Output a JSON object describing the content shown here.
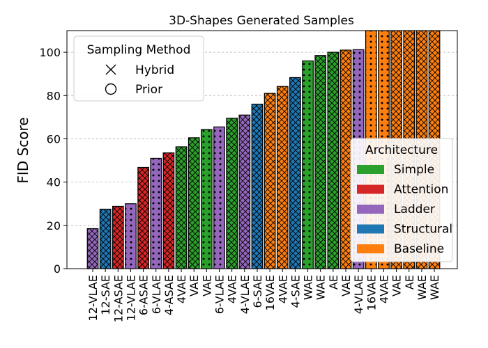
{
  "chart_data": {
    "type": "bar",
    "title": "3D-Shapes Generated Samples",
    "xlabel": "",
    "ylabel": "FID Score",
    "ylim": [
      0,
      110
    ],
    "yticks": [
      0,
      20,
      40,
      60,
      80,
      100
    ],
    "grid": "horizontal dashed",
    "categories": [
      "12-VLAE",
      "12-SAE",
      "12-ASAE",
      "12-VLAE",
      "6-ASAE",
      "6-VLAE",
      "4-ASAE",
      "4VAE",
      "VAE",
      "VAE",
      "6-VLAE",
      "4VAE",
      "4-VLAE",
      "6-SAE",
      "16VAE",
      "4VAE",
      "4-SAE",
      "WAE",
      "WAE",
      "AE",
      "VAE",
      "4-VLAE",
      "16VAE",
      "4VAE",
      "VAE",
      "AE",
      "WAE",
      "WAE"
    ],
    "values": [
      18.5,
      27.5,
      28.8,
      30,
      46.8,
      51,
      53.5,
      56.3,
      60.5,
      64.3,
      65.5,
      69.5,
      71,
      76,
      81,
      84.2,
      88.3,
      96,
      98.5,
      100,
      101,
      101.2,
      110,
      110,
      110,
      110,
      110,
      110
    ],
    "architecture": [
      "Ladder",
      "Structural",
      "Attention",
      "Ladder",
      "Attention",
      "Ladder",
      "Attention",
      "Simple",
      "Simple",
      "Simple",
      "Ladder",
      "Simple",
      "Ladder",
      "Structural",
      "Baseline",
      "Baseline",
      "Structural",
      "Simple",
      "Simple",
      "Simple",
      "Baseline",
      "Ladder",
      "Baseline",
      "Baseline",
      "Baseline",
      "Baseline",
      "Baseline",
      "Baseline"
    ],
    "sampling": [
      "Hybrid",
      "Hybrid",
      "Hybrid",
      "Prior",
      "Hybrid",
      "Prior",
      "Hybrid",
      "Hybrid",
      "Hybrid",
      "Prior",
      "Prior",
      "Hybrid",
      "Hybrid",
      "Hybrid",
      "Hybrid",
      "Hybrid",
      "Hybrid",
      "Prior",
      "Hybrid",
      "Hybrid",
      "Hybrid",
      "Prior",
      "Prior",
      "Prior",
      "Hybrid",
      "Hybrid",
      "Hybrid",
      "Hybrid"
    ],
    "legends": {
      "sampling": {
        "title": "Sampling Method",
        "placement": "top-left",
        "entries": [
          {
            "label": "Hybrid",
            "marker": "x-cross"
          },
          {
            "label": "Prior",
            "marker": "circle"
          }
        ]
      },
      "architecture": {
        "title": "Architecture",
        "placement": "center-right",
        "entries": [
          {
            "label": "Simple",
            "color": "#2ca02c"
          },
          {
            "label": "Attention",
            "color": "#d62728"
          },
          {
            "label": "Ladder",
            "color": "#9467bd"
          },
          {
            "label": "Structural",
            "color": "#1f77b4"
          },
          {
            "label": "Baseline",
            "color": "#ff7f0e"
          }
        ]
      }
    }
  }
}
